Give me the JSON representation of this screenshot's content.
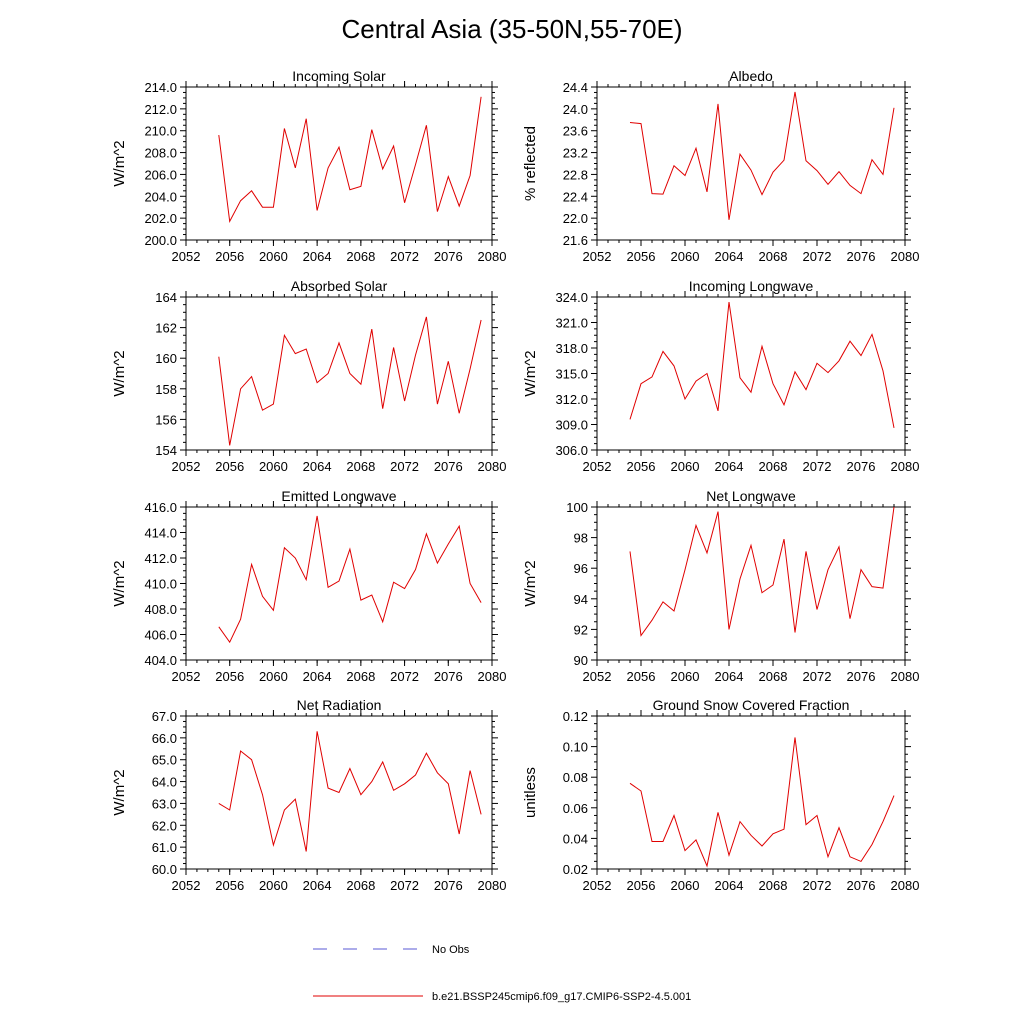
{
  "title": "Central Asia (35-50N,55-70E)",
  "legend": [
    {
      "label": "No Obs",
      "color": "#5a5ad6",
      "style": "dashed"
    },
    {
      "label": "b.e21.BSSP245cmip6.f09_g17.CMIP6-SSP2-4.5.001",
      "color": "#e00000",
      "style": "solid"
    }
  ],
  "chart_data": [
    {
      "type": "line",
      "title": "Incoming Solar",
      "ylabel": "W/m^2",
      "xlim": [
        2052,
        2080
      ],
      "ylim": [
        200,
        214
      ],
      "xticks": [
        "2052",
        "2056",
        "2060",
        "2064",
        "2068",
        "2072",
        "2076",
        "2080"
      ],
      "yticks": [
        "200.0",
        "202.0",
        "204.0",
        "206.0",
        "208.0",
        "210.0",
        "212.0",
        "214.0"
      ],
      "x": [
        2055,
        2056,
        2057,
        2058,
        2059,
        2060,
        2061,
        2062,
        2063,
        2064,
        2065,
        2066,
        2067,
        2068,
        2069,
        2070,
        2071,
        2072,
        2073,
        2074,
        2075,
        2076,
        2077,
        2078,
        2079
      ],
      "series": [
        {
          "values": [
            209.6,
            201.7,
            203.6,
            204.5,
            203.0,
            203.0,
            210.2,
            206.6,
            211.1,
            202.7,
            206.6,
            208.5,
            204.6,
            204.9,
            210.1,
            206.5,
            208.6,
            203.4,
            206.9,
            210.5,
            202.6,
            205.8,
            203.1,
            205.9,
            213.1
          ]
        }
      ]
    },
    {
      "type": "line",
      "title": "Albedo",
      "ylabel": "% reflected",
      "xlim": [
        2052,
        2080
      ],
      "ylim": [
        21.6,
        24.4
      ],
      "xticks": [
        "2052",
        "2056",
        "2060",
        "2064",
        "2068",
        "2072",
        "2076",
        "2080"
      ],
      "yticks": [
        "21.6",
        "22.0",
        "22.4",
        "22.8",
        "23.2",
        "23.6",
        "24.0",
        "24.4"
      ],
      "x": [
        2055,
        2056,
        2057,
        2058,
        2059,
        2060,
        2061,
        2062,
        2063,
        2064,
        2065,
        2066,
        2067,
        2068,
        2069,
        2070,
        2071,
        2072,
        2073,
        2074,
        2075,
        2076,
        2077,
        2078,
        2079
      ],
      "series": [
        {
          "values": [
            23.75,
            23.73,
            22.45,
            22.44,
            22.96,
            22.78,
            23.28,
            22.48,
            24.09,
            21.97,
            23.17,
            22.88,
            22.43,
            22.84,
            23.06,
            24.31,
            23.05,
            22.87,
            22.62,
            22.85,
            22.6,
            22.45,
            23.07,
            22.8,
            24.02
          ]
        }
      ]
    },
    {
      "type": "line",
      "title": "Absorbed Solar",
      "ylabel": "W/m^2",
      "xlim": [
        2052,
        2080
      ],
      "ylim": [
        154,
        164
      ],
      "xticks": [
        "2052",
        "2056",
        "2060",
        "2064",
        "2068",
        "2072",
        "2076",
        "2080"
      ],
      "yticks": [
        "154",
        "156",
        "158",
        "160",
        "162",
        "164"
      ],
      "x": [
        2055,
        2056,
        2057,
        2058,
        2059,
        2060,
        2061,
        2062,
        2063,
        2064,
        2065,
        2066,
        2067,
        2068,
        2069,
        2070,
        2071,
        2072,
        2073,
        2074,
        2075,
        2076,
        2077,
        2078,
        2079
      ],
      "series": [
        {
          "values": [
            160.1,
            154.3,
            158.0,
            158.8,
            156.6,
            157.0,
            161.5,
            160.3,
            160.6,
            158.4,
            159.0,
            161.0,
            159.0,
            158.3,
            161.9,
            156.7,
            160.7,
            157.2,
            160.2,
            162.7,
            157.0,
            159.8,
            156.4,
            159.3,
            162.5
          ]
        }
      ]
    },
    {
      "type": "line",
      "title": "Incoming Longwave",
      "ylabel": "W/m^2",
      "xlim": [
        2052,
        2080
      ],
      "ylim": [
        306,
        324
      ],
      "xticks": [
        "2052",
        "2056",
        "2060",
        "2064",
        "2068",
        "2072",
        "2076",
        "2080"
      ],
      "yticks": [
        "306.0",
        "309.0",
        "312.0",
        "315.0",
        "318.0",
        "321.0",
        "324.0"
      ],
      "x": [
        2055,
        2056,
        2057,
        2058,
        2059,
        2060,
        2061,
        2062,
        2063,
        2064,
        2065,
        2066,
        2067,
        2068,
        2069,
        2070,
        2071,
        2072,
        2073,
        2074,
        2075,
        2076,
        2077,
        2078,
        2079
      ],
      "series": [
        {
          "values": [
            309.6,
            313.8,
            314.6,
            317.6,
            315.9,
            312.0,
            314.1,
            315.0,
            310.6,
            323.4,
            314.5,
            312.8,
            318.2,
            313.8,
            311.3,
            315.2,
            313.1,
            316.2,
            315.1,
            316.5,
            318.8,
            317.1,
            319.6,
            315.3,
            308.6
          ]
        }
      ]
    },
    {
      "type": "line",
      "title": "Emitted Longwave",
      "ylabel": "W/m^2",
      "xlim": [
        2052,
        2080
      ],
      "ylim": [
        404,
        416
      ],
      "xticks": [
        "2052",
        "2056",
        "2060",
        "2064",
        "2068",
        "2072",
        "2076",
        "2080"
      ],
      "yticks": [
        "404.0",
        "406.0",
        "408.0",
        "410.0",
        "412.0",
        "414.0",
        "416.0"
      ],
      "x": [
        2055,
        2056,
        2057,
        2058,
        2059,
        2060,
        2061,
        2062,
        2063,
        2064,
        2065,
        2066,
        2067,
        2068,
        2069,
        2070,
        2071,
        2072,
        2073,
        2074,
        2075,
        2076,
        2077,
        2078,
        2079
      ],
      "series": [
        {
          "values": [
            406.6,
            405.4,
            407.2,
            411.5,
            409.0,
            407.9,
            412.8,
            412.0,
            410.3,
            415.3,
            409.7,
            410.2,
            412.7,
            408.7,
            409.1,
            407.0,
            410.1,
            409.6,
            411.1,
            413.9,
            411.6,
            413.1,
            414.5,
            410.0,
            408.5
          ]
        }
      ]
    },
    {
      "type": "line",
      "title": "Net Longwave",
      "ylabel": "W/m^2",
      "xlim": [
        2052,
        2080
      ],
      "ylim": [
        90,
        100
      ],
      "xticks": [
        "2052",
        "2056",
        "2060",
        "2064",
        "2068",
        "2072",
        "2076",
        "2080"
      ],
      "yticks": [
        "90",
        "92",
        "94",
        "96",
        "98",
        "100"
      ],
      "x": [
        2055,
        2056,
        2057,
        2058,
        2059,
        2060,
        2061,
        2062,
        2063,
        2064,
        2065,
        2066,
        2067,
        2068,
        2069,
        2070,
        2071,
        2072,
        2073,
        2074,
        2075,
        2076,
        2077,
        2078,
        2079
      ],
      "series": [
        {
          "values": [
            97.1,
            91.6,
            92.6,
            93.8,
            93.2,
            95.9,
            98.8,
            97.0,
            99.7,
            92.0,
            95.3,
            97.5,
            94.4,
            94.9,
            97.9,
            91.8,
            97.1,
            93.3,
            95.9,
            97.4,
            92.7,
            95.9,
            94.8,
            94.7,
            100.0
          ]
        }
      ]
    },
    {
      "type": "line",
      "title": "Net Radiation",
      "ylabel": "W/m^2",
      "xlim": [
        2052,
        2080
      ],
      "ylim": [
        60,
        67
      ],
      "xticks": [
        "2052",
        "2056",
        "2060",
        "2064",
        "2068",
        "2072",
        "2076",
        "2080"
      ],
      "yticks": [
        "60.0",
        "61.0",
        "62.0",
        "63.0",
        "64.0",
        "65.0",
        "66.0",
        "67.0"
      ],
      "x": [
        2055,
        2056,
        2057,
        2058,
        2059,
        2060,
        2061,
        2062,
        2063,
        2064,
        2065,
        2066,
        2067,
        2068,
        2069,
        2070,
        2071,
        2072,
        2073,
        2074,
        2075,
        2076,
        2077,
        2078,
        2079
      ],
      "series": [
        {
          "values": [
            63.0,
            62.7,
            65.4,
            65.0,
            63.4,
            61.1,
            62.7,
            63.2,
            60.8,
            66.3,
            63.7,
            63.5,
            64.6,
            63.4,
            64.0,
            64.9,
            63.6,
            63.9,
            64.3,
            65.3,
            64.4,
            63.9,
            61.6,
            64.5,
            62.5
          ]
        }
      ]
    },
    {
      "type": "line",
      "title": "Ground Snow Covered Fraction",
      "ylabel": "unitless",
      "xlim": [
        2052,
        2080
      ],
      "ylim": [
        0.02,
        0.12
      ],
      "xticks": [
        "2052",
        "2056",
        "2060",
        "2064",
        "2068",
        "2072",
        "2076",
        "2080"
      ],
      "yticks": [
        "0.02",
        "0.04",
        "0.06",
        "0.08",
        "0.10",
        "0.12"
      ],
      "x": [
        2055,
        2056,
        2057,
        2058,
        2059,
        2060,
        2061,
        2062,
        2063,
        2064,
        2065,
        2066,
        2067,
        2068,
        2069,
        2070,
        2071,
        2072,
        2073,
        2074,
        2075,
        2076,
        2077,
        2078,
        2079
      ],
      "series": [
        {
          "values": [
            0.076,
            0.071,
            0.038,
            0.038,
            0.055,
            0.032,
            0.039,
            0.022,
            0.057,
            0.029,
            0.051,
            0.042,
            0.035,
            0.043,
            0.046,
            0.106,
            0.049,
            0.055,
            0.028,
            0.047,
            0.028,
            0.025,
            0.036,
            0.051,
            0.068
          ]
        }
      ]
    }
  ]
}
